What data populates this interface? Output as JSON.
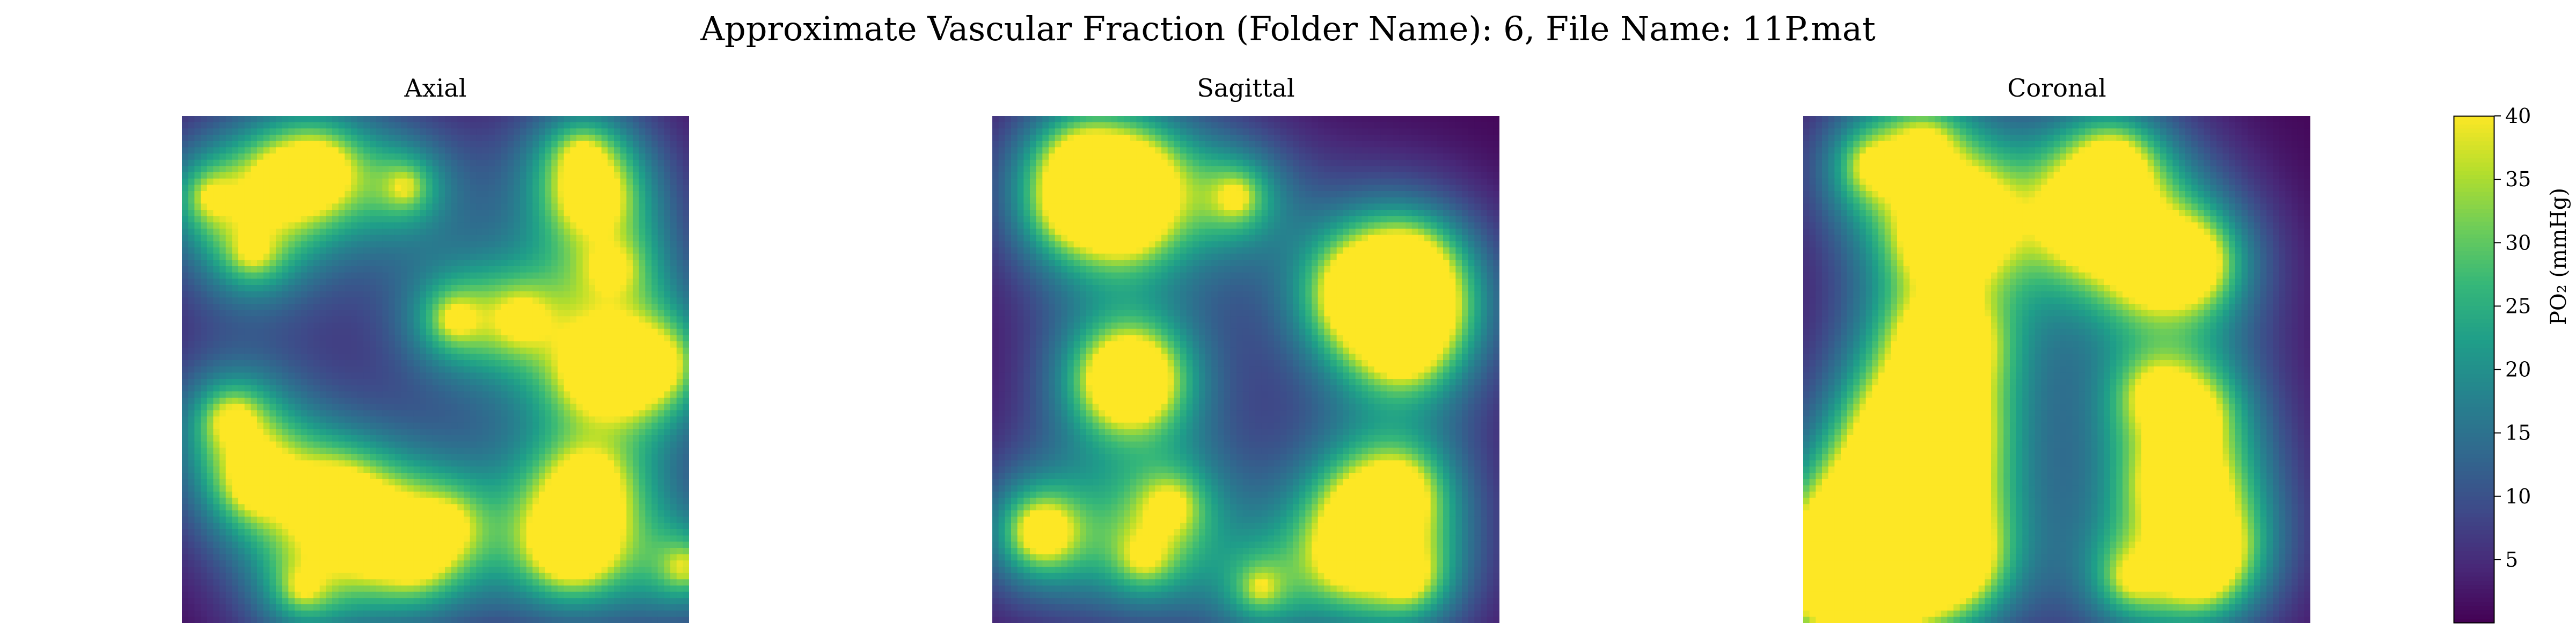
{
  "title": "Approximate Vascular Fraction (Folder Name): 6, File Name: 11P.mat",
  "colors": {
    "colormap": "viridis",
    "low": "#440154",
    "mid": "#21918c",
    "high": "#fde725"
  },
  "chart_data": {
    "type": "heatmap",
    "colorbar": {
      "label": "PO₂ (mmHg)",
      "ticks": [
        5,
        10,
        15,
        20,
        25,
        30,
        35,
        40
      ],
      "range": [
        0,
        40
      ],
      "colormap": "viridis"
    },
    "panels": [
      {
        "title": "Axial",
        "background": 0,
        "sources": [
          {
            "x": 0.15,
            "y": 0.72,
            "r": 0.025,
            "peak": 40
          },
          {
            "x": 0.1,
            "y": 0.6,
            "r": 0.03,
            "peak": 30
          },
          {
            "x": 0.3,
            "y": 0.76,
            "r": 0.03,
            "peak": 38
          },
          {
            "x": 0.38,
            "y": 0.82,
            "r": 0.025,
            "peak": 36
          },
          {
            "x": 0.46,
            "y": 0.87,
            "r": 0.015,
            "peak": 30
          },
          {
            "x": 0.52,
            "y": 0.81,
            "r": 0.015,
            "peak": 30
          },
          {
            "x": 0.77,
            "y": 0.84,
            "r": 0.05,
            "peak": 45
          },
          {
            "x": 0.8,
            "y": 0.73,
            "r": 0.03,
            "peak": 34
          },
          {
            "x": 0.86,
            "y": 0.5,
            "r": 0.025,
            "peak": 34
          },
          {
            "x": 0.82,
            "y": 0.5,
            "r": 0.02,
            "peak": 30
          },
          {
            "x": 0.94,
            "y": 0.49,
            "r": 0.02,
            "peak": 30
          },
          {
            "x": 0.54,
            "y": 0.4,
            "r": 0.015,
            "peak": 34
          },
          {
            "x": 0.67,
            "y": 0.4,
            "r": 0.015,
            "peak": 32
          },
          {
            "x": 0.81,
            "y": 0.16,
            "r": 0.025,
            "peak": 38
          },
          {
            "x": 0.79,
            "y": 0.08,
            "r": 0.015,
            "peak": 30
          },
          {
            "x": 0.85,
            "y": 0.3,
            "r": 0.012,
            "peak": 30
          },
          {
            "x": 0.27,
            "y": 0.11,
            "r": 0.025,
            "peak": 38
          },
          {
            "x": 0.2,
            "y": 0.13,
            "r": 0.02,
            "peak": 32
          },
          {
            "x": 0.06,
            "y": 0.16,
            "r": 0.015,
            "peak": 30
          },
          {
            "x": 0.14,
            "y": 0.27,
            "r": 0.012,
            "peak": 30
          },
          {
            "x": 0.44,
            "y": 0.14,
            "r": 0.015,
            "peak": 30
          },
          {
            "x": 0.24,
            "y": 0.93,
            "r": 0.012,
            "peak": 30
          },
          {
            "x": 0.99,
            "y": 0.89,
            "r": 0.015,
            "peak": 32
          }
        ]
      },
      {
        "title": "Sagittal",
        "background": 0,
        "sources": [
          {
            "x": 0.27,
            "y": 0.52,
            "r": 0.06,
            "peak": 48
          },
          {
            "x": 0.18,
            "y": 0.1,
            "r": 0.025,
            "peak": 38
          },
          {
            "x": 0.28,
            "y": 0.13,
            "r": 0.03,
            "peak": 38
          },
          {
            "x": 0.26,
            "y": 0.2,
            "r": 0.025,
            "peak": 34
          },
          {
            "x": 0.16,
            "y": 0.18,
            "r": 0.02,
            "peak": 30
          },
          {
            "x": 0.48,
            "y": 0.16,
            "r": 0.02,
            "peak": 32
          },
          {
            "x": 0.74,
            "y": 0.35,
            "r": 0.05,
            "peak": 45
          },
          {
            "x": 0.84,
            "y": 0.38,
            "r": 0.025,
            "peak": 34
          },
          {
            "x": 0.82,
            "y": 0.3,
            "r": 0.025,
            "peak": 34
          },
          {
            "x": 0.81,
            "y": 0.46,
            "r": 0.02,
            "peak": 32
          },
          {
            "x": 0.1,
            "y": 0.82,
            "r": 0.035,
            "peak": 40
          },
          {
            "x": 0.35,
            "y": 0.77,
            "r": 0.02,
            "peak": 32
          },
          {
            "x": 0.3,
            "y": 0.87,
            "r": 0.015,
            "peak": 30
          },
          {
            "x": 0.74,
            "y": 0.79,
            "r": 0.03,
            "peak": 38
          },
          {
            "x": 0.8,
            "y": 0.74,
            "r": 0.025,
            "peak": 34
          },
          {
            "x": 0.7,
            "y": 0.87,
            "r": 0.02,
            "peak": 32
          },
          {
            "x": 0.82,
            "y": 0.91,
            "r": 0.02,
            "peak": 32
          },
          {
            "x": 0.53,
            "y": 0.93,
            "r": 0.012,
            "peak": 30
          }
        ]
      },
      {
        "title": "Coronal",
        "background": 0,
        "sources": [
          {
            "x": 0.2,
            "y": 0.78,
            "r": 0.08,
            "peak": 55
          },
          {
            "x": 0.24,
            "y": 0.62,
            "r": 0.07,
            "peak": 52
          },
          {
            "x": 0.08,
            "y": 0.9,
            "r": 0.06,
            "peak": 50
          },
          {
            "x": 0.28,
            "y": 0.45,
            "r": 0.05,
            "peak": 46
          },
          {
            "x": 0.14,
            "y": 0.88,
            "r": 0.05,
            "peak": 48
          },
          {
            "x": 0.3,
            "y": 0.88,
            "r": 0.03,
            "peak": 36
          },
          {
            "x": 0.32,
            "y": 0.2,
            "r": 0.04,
            "peak": 42
          },
          {
            "x": 0.27,
            "y": 0.25,
            "r": 0.025,
            "peak": 34
          },
          {
            "x": 0.14,
            "y": 0.1,
            "r": 0.02,
            "peak": 32
          },
          {
            "x": 0.24,
            "y": 0.06,
            "r": 0.015,
            "peak": 32
          },
          {
            "x": 0.57,
            "y": 0.2,
            "r": 0.05,
            "peak": 45
          },
          {
            "x": 0.61,
            "y": 0.1,
            "r": 0.025,
            "peak": 38
          },
          {
            "x": 0.76,
            "y": 0.29,
            "r": 0.035,
            "peak": 42
          },
          {
            "x": 0.68,
            "y": 0.3,
            "r": 0.02,
            "peak": 30
          },
          {
            "x": 0.7,
            "y": 0.55,
            "r": 0.02,
            "peak": 32
          },
          {
            "x": 0.77,
            "y": 0.59,
            "r": 0.02,
            "peak": 32
          },
          {
            "x": 0.73,
            "y": 0.72,
            "r": 0.015,
            "peak": 30
          },
          {
            "x": 0.77,
            "y": 0.74,
            "r": 0.015,
            "peak": 30
          },
          {
            "x": 0.8,
            "y": 0.85,
            "r": 0.025,
            "peak": 36
          },
          {
            "x": 0.65,
            "y": 0.91,
            "r": 0.015,
            "peak": 30
          },
          {
            "x": 0.78,
            "y": 0.9,
            "r": 0.015,
            "peak": 30
          }
        ]
      }
    ]
  }
}
